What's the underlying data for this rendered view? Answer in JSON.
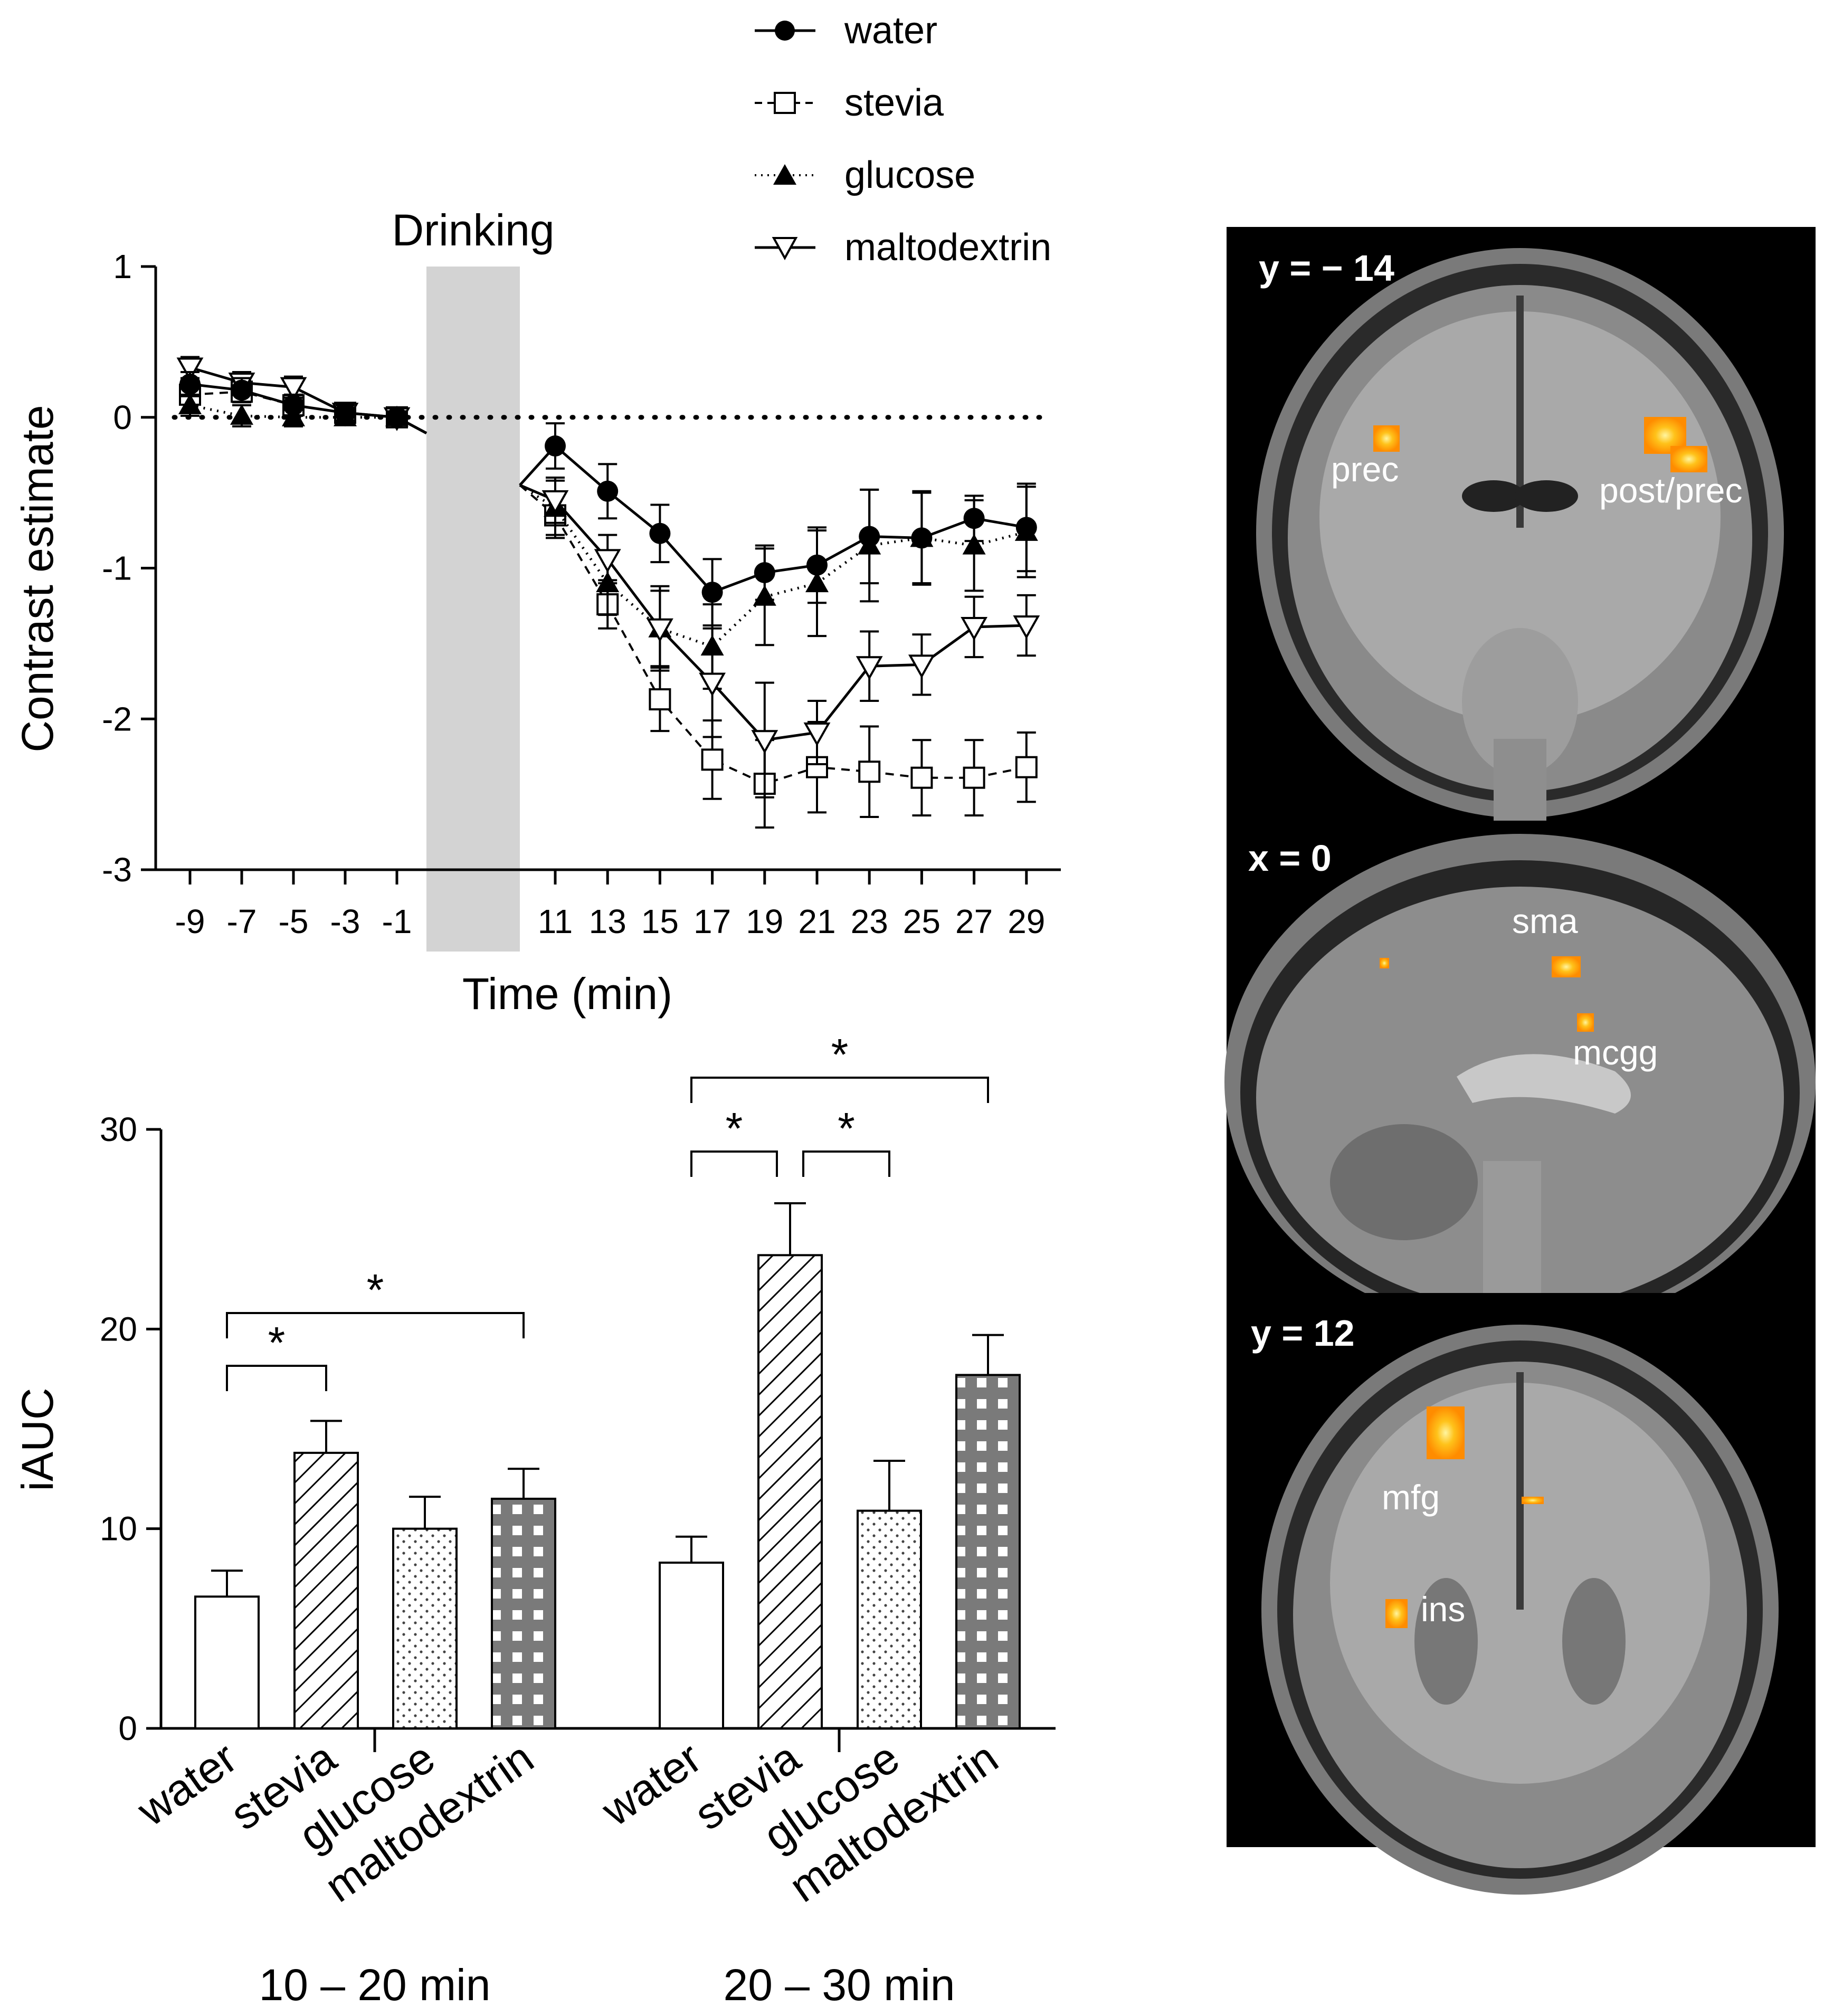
{
  "chart_data": [
    {
      "type": "line",
      "xlabel": "Time (min)",
      "ylabel": "Contrast estimate",
      "ylim": [
        -3,
        1
      ],
      "yticks": [
        "1",
        "0",
        "-1",
        "-2",
        "-3"
      ],
      "xticks": [
        "-9",
        "-7",
        "-5",
        "-3",
        "-1",
        "11",
        "13",
        "15",
        "17",
        "19",
        "21",
        "23",
        "25",
        "27",
        "29"
      ],
      "shaded_label": "Drinking",
      "shaded_range": [
        0,
        9
      ],
      "baseline": 0,
      "legend": [
        {
          "name": "water",
          "marker": "circle-filled",
          "dash": "solid"
        },
        {
          "name": "stevia",
          "marker": "square-open",
          "dash": "dashed"
        },
        {
          "name": "glucose",
          "marker": "triangle-filled",
          "dash": "dotted"
        },
        {
          "name": "maltodextrin",
          "marker": "triangle-down-open",
          "dash": "solid"
        }
      ],
      "x": [
        -9,
        -7,
        -5,
        -3,
        -1,
        11,
        13,
        15,
        17,
        19,
        21,
        23,
        25,
        27,
        29
      ],
      "series": [
        {
          "name": "water",
          "values": [
            0.22,
            0.18,
            0.08,
            0.03,
            0.0,
            -0.19,
            -0.49,
            -0.77,
            -1.16,
            -1.03,
            -0.98,
            -0.79,
            -0.8,
            -0.67,
            -0.73
          ],
          "errors": [
            0.08,
            0.08,
            0.07,
            0.05,
            0.04,
            0.15,
            0.18,
            0.19,
            0.22,
            0.18,
            0.25,
            0.31,
            0.31,
            0.15,
            0.29
          ]
        },
        {
          "name": "stevia",
          "values": [
            0.15,
            0.17,
            0.08,
            0.03,
            0.0,
            -0.65,
            -1.24,
            -1.87,
            -2.27,
            -2.43,
            -2.32,
            -2.35,
            -2.39,
            -2.39,
            -2.32
          ],
          "errors": [
            0.06,
            0.07,
            0.07,
            0.05,
            0.04,
            0.15,
            0.16,
            0.21,
            0.26,
            0.29,
            0.3,
            0.3,
            0.25,
            0.25,
            0.23
          ]
        },
        {
          "name": "glucose",
          "values": [
            0.08,
            0.01,
            0.0,
            0.0,
            0.0,
            -0.6,
            -1.1,
            -1.4,
            -1.52,
            -1.19,
            -1.1,
            -0.85,
            -0.8,
            -0.85,
            -0.76
          ],
          "errors": [
            0.07,
            0.07,
            0.06,
            0.05,
            0.04,
            0.18,
            0.21,
            0.28,
            0.28,
            0.32,
            0.35,
            0.37,
            0.3,
            0.3,
            0.3
          ]
        },
        {
          "name": "maltodextrin",
          "values": [
            0.33,
            0.23,
            0.2,
            0.03,
            0.0,
            -0.55,
            -0.94,
            -1.4,
            -1.76,
            -2.14,
            -2.09,
            -1.65,
            -1.64,
            -1.39,
            -1.38
          ],
          "errors": [
            0.07,
            0.07,
            0.07,
            0.05,
            0.04,
            0.15,
            0.16,
            0.25,
            0.36,
            0.38,
            0.21,
            0.23,
            0.2,
            0.2,
            0.2
          ]
        }
      ]
    },
    {
      "type": "bar",
      "ylabel": "iAUC",
      "ylim": [
        0,
        30
      ],
      "yticks": [
        "30",
        "20",
        "10",
        "0"
      ],
      "groups": [
        {
          "label": "10 – 20 min",
          "categories": [
            "water",
            "stevia",
            "glucose",
            "maltodextrin"
          ],
          "values": [
            6.6,
            13.8,
            10.0,
            11.5
          ],
          "errors": [
            1.3,
            1.6,
            1.6,
            1.5
          ],
          "significance": [
            {
              "from": "water",
              "to": "stevia",
              "label": "*"
            },
            {
              "from": "water",
              "to": "maltodextrin",
              "label": "*"
            }
          ]
        },
        {
          "label": "20 – 30 min",
          "categories": [
            "water",
            "stevia",
            "glucose",
            "maltodextrin"
          ],
          "values": [
            8.3,
            23.7,
            10.9,
            17.7
          ],
          "errors": [
            1.3,
            2.6,
            2.5,
            2.0
          ],
          "significance": [
            {
              "from": "water",
              "to": "stevia",
              "label": "*"
            },
            {
              "from": "stevia",
              "to": "glucose",
              "label": "*"
            },
            {
              "from": "water",
              "to": "maltodextrin",
              "label": "*"
            }
          ]
        }
      ],
      "patterns": [
        "open",
        "diagonal-hatch",
        "dotted",
        "grid"
      ]
    }
  ],
  "brain_panels": [
    {
      "title": "y = − 14",
      "labels": [
        "prec",
        "post/prec"
      ]
    },
    {
      "title": "x = 0",
      "labels": [
        "sma",
        "mcgg"
      ]
    },
    {
      "title": "y = 12",
      "labels": [
        "mfg",
        "ins"
      ]
    }
  ],
  "colors": {
    "shade": "#d3d3d3",
    "activation": "#ffb000",
    "activation_core": "#fff066",
    "bar_grid": "#7a7a7a"
  }
}
